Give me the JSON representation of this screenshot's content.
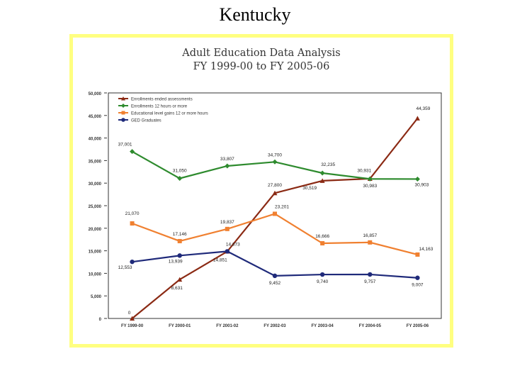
{
  "slide": {
    "title": "Kentucky"
  },
  "chart_data": {
    "type": "line",
    "title": "Adult Education Data Analysis",
    "subtitle": "FY 1999-00 to FY 2005-06",
    "categories": [
      "FY 1999-00",
      "FY 2000-01",
      "FY 2001-02",
      "FY 2002-03",
      "FY 2003-04",
      "FY 2004-05",
      "FY 2005-06"
    ],
    "ylim": [
      0,
      50000
    ],
    "yticks": [
      0,
      5000,
      10000,
      15000,
      20000,
      25000,
      30000,
      35000,
      40000,
      45000,
      50000
    ],
    "ytick_labels": [
      "0",
      "5,000",
      "10,000",
      "15,000",
      "20,000",
      "25,000",
      "30,000",
      "35,000",
      "40,000",
      "45,000",
      "50,000"
    ],
    "legend_position": "top-left",
    "series": [
      {
        "name": "Enrollments ended assessments",
        "color": "#8b2a14",
        "marker": "triangle",
        "values": [
          0,
          8631,
          14851,
          27800,
          30519,
          30983,
          44359
        ],
        "labels": [
          "0",
          "8,631",
          "14,851",
          "27,800",
          "30,519",
          "30,983",
          "44,359"
        ]
      },
      {
        "name": "Enrollments 12 hours or more",
        "color": "#2e8b2e",
        "marker": "diamond",
        "values": [
          37001,
          31050,
          33807,
          34700,
          32235,
          30931,
          30903
        ],
        "labels": [
          "37,001",
          "31,050",
          "33,807",
          "34,700",
          "32,235",
          "30,931",
          "30,903"
        ]
      },
      {
        "name": "Educational level gains 12 or more hours",
        "color": "#f08030",
        "marker": "square",
        "values": [
          21070,
          17146,
          19837,
          23201,
          16666,
          16857,
          14163
        ],
        "labels": [
          "21,070",
          "17,146",
          "19,837",
          "23,201",
          "16,666",
          "16,857",
          "14,163"
        ]
      },
      {
        "name": "GED Graduates",
        "color": "#1f2a7a",
        "marker": "circle",
        "values": [
          12553,
          13939,
          14873,
          9452,
          9740,
          9757,
          9007
        ],
        "labels": [
          "12,553",
          "13,939",
          "14,873",
          "9,452",
          "9,740",
          "9,757",
          "9,007"
        ]
      }
    ]
  }
}
